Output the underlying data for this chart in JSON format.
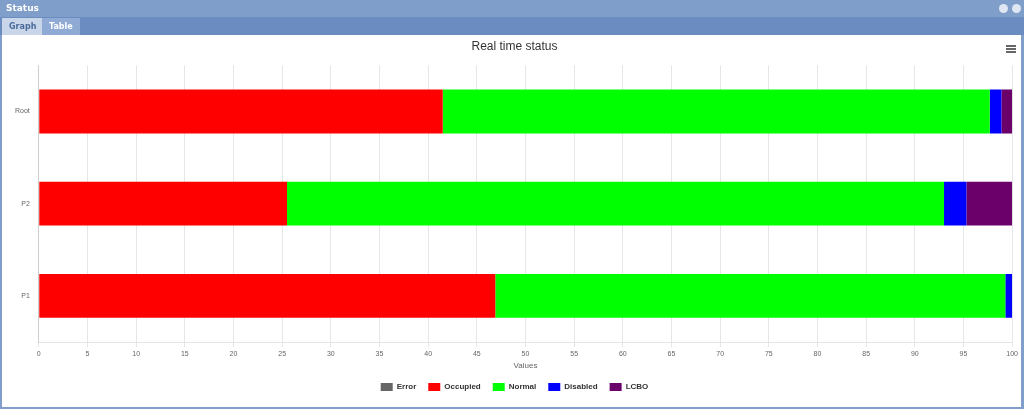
{
  "chart_data": {
    "type": "bar",
    "orientation": "horizontal",
    "stacked": true,
    "title": "Real time status",
    "xlabel": "Values",
    "annotations": [
      "Status",
      "Graph",
      "Table"
    ],
    "categories": [
      "Root",
      "P2",
      "P1"
    ],
    "series": [
      {
        "name": "Error",
        "color": "#666666",
        "values": [
          0,
          0,
          0
        ]
      },
      {
        "name": "Occupied",
        "color": "#ff0000",
        "values": [
          41.5,
          25.5,
          46.9
        ]
      },
      {
        "name": "Normal",
        "color": "#00ff00",
        "values": [
          56.2,
          67.5,
          52.4
        ]
      },
      {
        "name": "Disabled",
        "color": "#0000ff",
        "values": [
          1.2,
          2.3,
          0.7
        ]
      },
      {
        "name": "LCBO",
        "color": "#6b006b",
        "values": [
          1.1,
          4.7,
          null
        ]
      }
    ],
    "xlim": [
      0,
      100
    ],
    "xticks": [
      0,
      5,
      10,
      15,
      20,
      25,
      30,
      35,
      40,
      45,
      50,
      55,
      60,
      65,
      70,
      75,
      80,
      85,
      90,
      95,
      100
    ],
    "grid": "x",
    "legend": "bottom"
  }
}
